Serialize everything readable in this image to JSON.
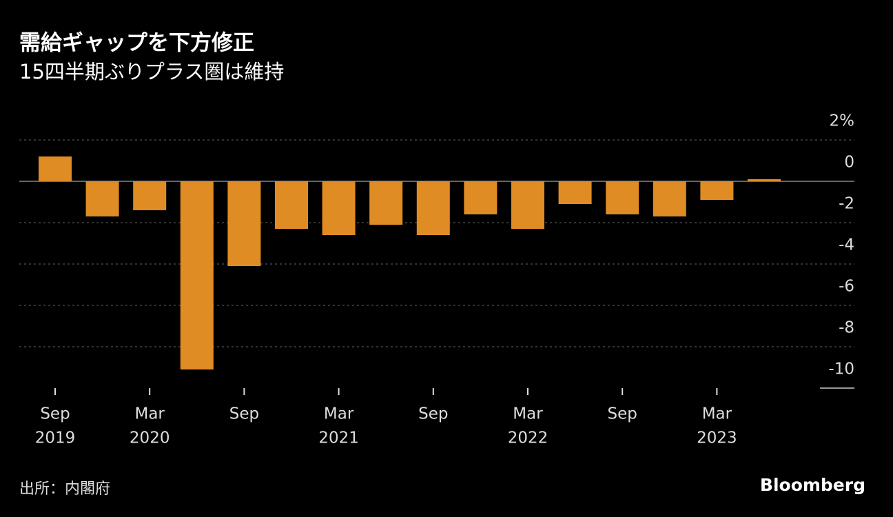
{
  "chart_data": {
    "type": "bar",
    "title": "需給ギャップを下方修正",
    "subtitle": "15四半期ぶりプラス圏は維持",
    "source": "出所：内閣府",
    "brand": "Bloomberg",
    "categories": [
      [
        "Sep",
        "2019"
      ],
      null,
      [
        "Mar",
        "2020"
      ],
      null,
      [
        "Sep"
      ],
      null,
      [
        "Mar",
        "2021"
      ],
      null,
      [
        "Sep"
      ],
      null,
      [
        "Mar",
        "2022"
      ],
      null,
      [
        "Sep"
      ],
      null,
      [
        "Mar",
        "2023"
      ],
      null
    ],
    "values": [
      1.2,
      -1.7,
      -1.4,
      -9.1,
      -4.1,
      -2.3,
      -2.6,
      -2.1,
      -2.6,
      -1.6,
      -2.3,
      -1.1,
      -1.6,
      -1.7,
      -0.9,
      0.1
    ],
    "color": "#e08c25",
    "ylim": [
      -10,
      2
    ],
    "yticks": [
      {
        "value": 2,
        "label": "2%"
      },
      0,
      -2,
      -4,
      -6,
      -8,
      -10
    ],
    "grid": true
  }
}
